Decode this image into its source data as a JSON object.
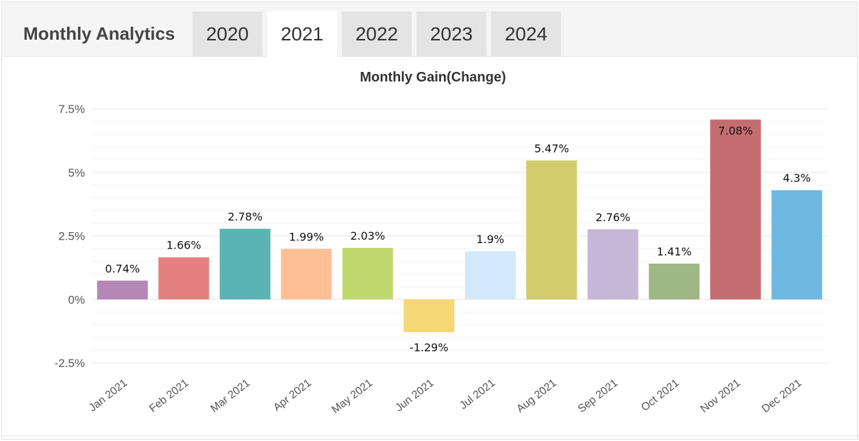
{
  "header": {
    "title": "Monthly Analytics",
    "tabs": [
      {
        "label": "2020",
        "active": false
      },
      {
        "label": "2021",
        "active": true
      },
      {
        "label": "2022",
        "active": false
      },
      {
        "label": "2023",
        "active": false
      },
      {
        "label": "2024",
        "active": false
      }
    ]
  },
  "chart_data": {
    "type": "bar",
    "title": "Monthly Gain(Change)",
    "xlabel": "",
    "ylabel": "",
    "ylim": [
      -2.5,
      7.5
    ],
    "yticks": [
      "7.5%",
      "5%",
      "2.5%",
      "0%",
      "-2.5%"
    ],
    "ytick_values": [
      7.5,
      5,
      2.5,
      0,
      -2.5
    ],
    "grid": true,
    "categories": [
      "Jan 2021",
      "Feb 2021",
      "Mar 2021",
      "Apr 2021",
      "May 2021",
      "Jun 2021",
      "Jul 2021",
      "Aug 2021",
      "Sep 2021",
      "Oct 2021",
      "Nov 2021",
      "Dec 2021"
    ],
    "values": [
      0.74,
      1.66,
      2.78,
      1.99,
      2.03,
      -1.29,
      1.9,
      5.47,
      2.76,
      1.41,
      7.08,
      4.3
    ],
    "data_labels": [
      "0.74%",
      "1.66%",
      "2.78%",
      "1.99%",
      "2.03%",
      "-1.29%",
      "1.9%",
      "5.47%",
      "2.76%",
      "1.41%",
      "7.08%",
      "4.3%"
    ],
    "colors": [
      "#b587b7",
      "#e4807f",
      "#5bb4b4",
      "#ffbf96",
      "#bfd96f",
      "#f6d775",
      "#d3e9fb",
      "#d2cb6a",
      "#c8b6d9",
      "#9eb785",
      "#c46d70",
      "#6eb9e2"
    ]
  }
}
